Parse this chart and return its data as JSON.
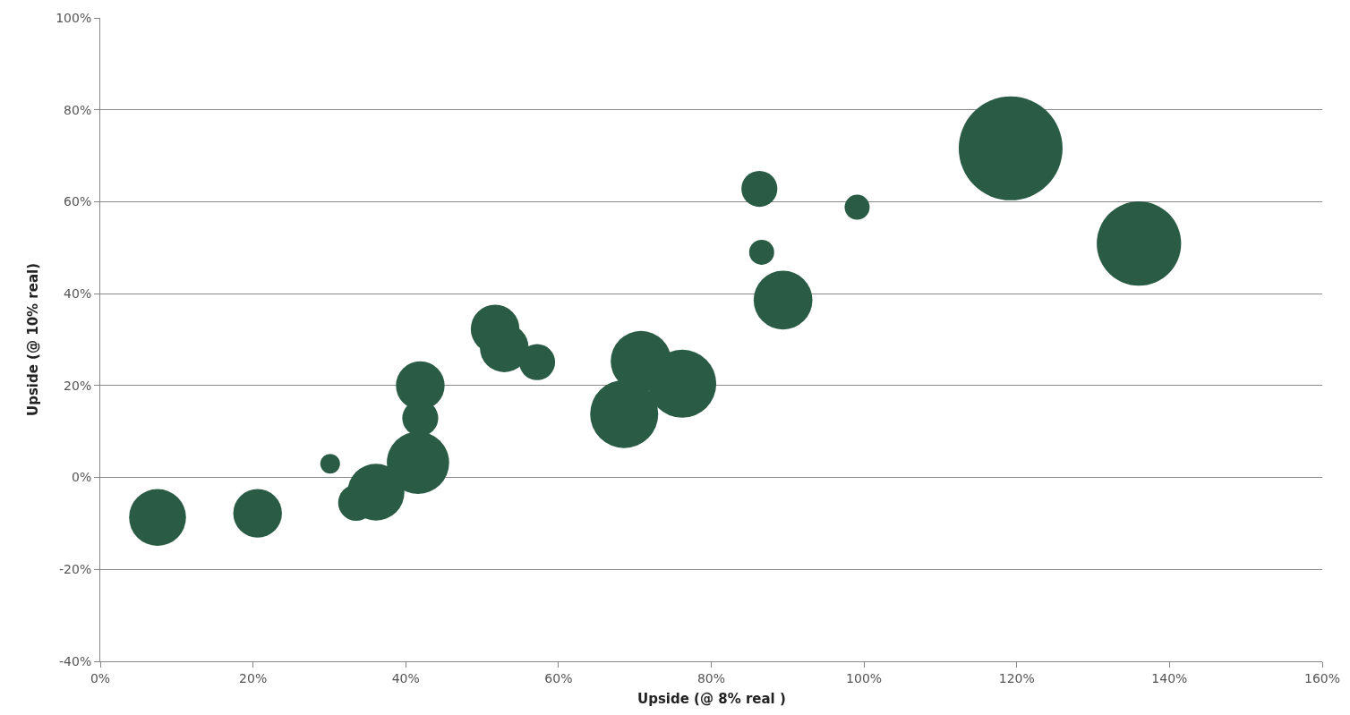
{
  "chart_data": {
    "type": "bubble",
    "xlabel": "Upside (@ 8% real )",
    "ylabel": "Upside (@ 10% real)",
    "x": [
      7.5,
      20.6,
      30.1,
      33.5,
      36.1,
      41.6,
      41.9,
      41.9,
      51.7,
      52.9,
      57.2,
      68.6,
      70.8,
      76.2,
      86.3,
      86.6,
      89.4,
      99.1,
      119.2,
      136.0
    ],
    "values": [
      -8.7,
      -7.8,
      3.0,
      -5.5,
      -3.2,
      3.2,
      12.9,
      20.0,
      32.3,
      28.2,
      25.1,
      13.8,
      25.3,
      20.4,
      62.8,
      49.0,
      38.6,
      58.8,
      71.6,
      50.9
    ],
    "sizes": [
      0.3,
      0.22,
      0.036,
      0.12,
      0.3,
      0.36,
      0.12,
      0.22,
      0.22,
      0.22,
      0.12,
      0.43,
      0.34,
      0.43,
      0.12,
      0.058,
      0.32,
      0.058,
      1,
      0.66
    ],
    "color": "#2a5c45",
    "xlim": [
      0,
      160
    ],
    "xticks": [
      {
        "value": 0,
        "label": "0%"
      },
      {
        "value": 20,
        "label": "20%"
      },
      {
        "value": 40,
        "label": "40%"
      },
      {
        "value": 60,
        "label": "60%"
      },
      {
        "value": 80,
        "label": "80%"
      },
      {
        "value": 100,
        "label": "100%"
      },
      {
        "value": 120,
        "label": "120%"
      },
      {
        "value": 140,
        "label": "140%"
      },
      {
        "value": 160,
        "label": "160%"
      }
    ],
    "ylim": [
      -40,
      100
    ],
    "yticks": [
      {
        "value": -40,
        "label": "-40%"
      },
      {
        "value": -20,
        "label": "-20%"
      },
      {
        "value": 0,
        "label": "0%"
      },
      {
        "value": 20,
        "label": "20%"
      },
      {
        "value": 40,
        "label": "40%"
      },
      {
        "value": 60,
        "label": "60%"
      },
      {
        "value": 80,
        "label": "80%"
      },
      {
        "value": 100,
        "label": "100%"
      }
    ],
    "grid": "y"
  }
}
